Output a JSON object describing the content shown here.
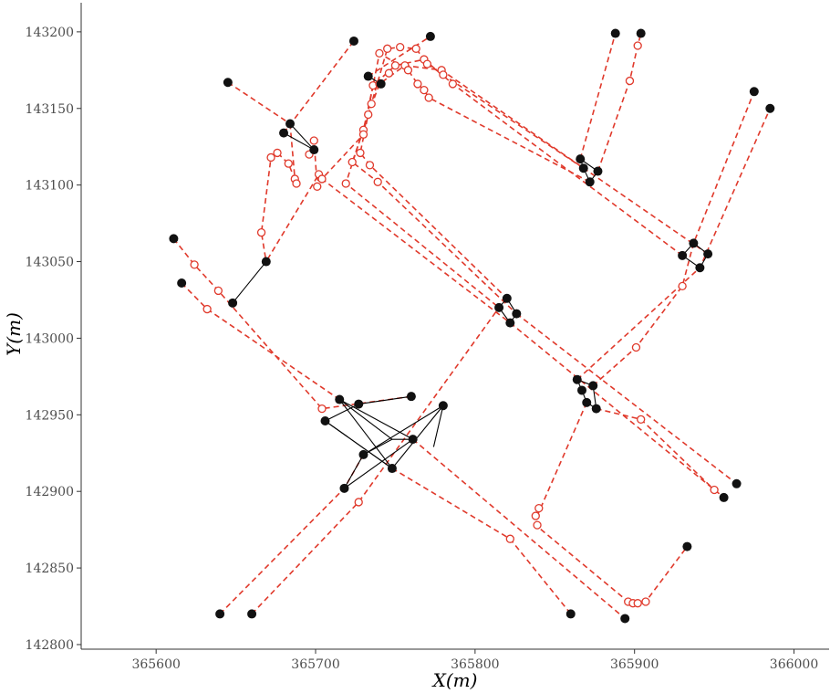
{
  "chart_data": {
    "type": "scatter",
    "xlabel": "X(m)",
    "ylabel": "Y(m)",
    "xlim": [
      365553,
      366022
    ],
    "ylim": [
      142797,
      143219
    ],
    "x_ticks": [
      365600,
      365700,
      365800,
      365900,
      366000
    ],
    "y_ticks": [
      142800,
      142850,
      142900,
      142950,
      143000,
      143050,
      143100,
      143150,
      143200
    ],
    "x_tick_labels": [
      "365600",
      "365700",
      "365800",
      "365900",
      "366000"
    ],
    "y_tick_labels": [
      "142800",
      "142850",
      "142900",
      "142950",
      "143000",
      "143050",
      "143100",
      "143150",
      "143200"
    ],
    "grid": false,
    "legend": "none",
    "colors": {
      "link": "#000000",
      "node": "#111111",
      "route": "#e0392b"
    },
    "series": [
      {
        "values": [
          [
            365640,
            142820
          ],
          [
            365718,
            142902
          ],
          [
            365780,
            142956
          ],
          [
            365815,
            143020
          ],
          [
            365820,
            143026
          ],
          [
            365822,
            143010
          ],
          [
            365826,
            143016
          ],
          [
            365660,
            142820
          ],
          [
            365706,
            142946
          ],
          [
            365761,
            142934
          ],
          [
            365748,
            142915
          ],
          [
            365730,
            142924
          ],
          [
            365860,
            142820
          ],
          [
            365760,
            142962
          ],
          [
            365727,
            142957
          ],
          [
            365715,
            142960
          ],
          [
            365611,
            143065
          ],
          [
            365616,
            143036
          ],
          [
            365648,
            143023
          ],
          [
            365669,
            143050
          ],
          [
            365867,
            142966
          ],
          [
            365870,
            142958
          ],
          [
            365864,
            142973
          ],
          [
            365874,
            142969
          ],
          [
            365956,
            142896
          ],
          [
            365964,
            142905
          ],
          [
            365894,
            142817
          ],
          [
            365933,
            142864
          ],
          [
            365876,
            142954
          ],
          [
            365975,
            143161
          ],
          [
            365985,
            143150
          ],
          [
            365930,
            143054
          ],
          [
            365937,
            143062
          ],
          [
            365941,
            143046
          ],
          [
            365946,
            143055
          ],
          [
            365888,
            143199
          ],
          [
            365904,
            143199
          ],
          [
            365866,
            143117
          ],
          [
            365868,
            143111
          ],
          [
            365872,
            143102
          ],
          [
            365877,
            143109
          ],
          [
            365645,
            143167
          ],
          [
            365684,
            143140
          ],
          [
            365680,
            143134
          ],
          [
            365699,
            143123
          ],
          [
            365724,
            143194
          ],
          [
            365772,
            143197
          ],
          [
            365733,
            143171
          ],
          [
            365741,
            143166
          ]
        ]
      },
      {
        "values": [
          [
            365624,
            143048
          ],
          [
            365639,
            143031
          ],
          [
            365632,
            143019
          ],
          [
            365704,
            142954
          ],
          [
            365727,
            142893
          ],
          [
            365822,
            142869
          ],
          [
            365904,
            142947
          ],
          [
            365950,
            142901
          ],
          [
            365901,
            142994
          ],
          [
            365930,
            143034
          ],
          [
            365897,
            143168
          ],
          [
            365902,
            143191
          ],
          [
            365907,
            142828
          ],
          [
            365896,
            142828
          ],
          [
            365899,
            142827
          ],
          [
            365902,
            142827
          ],
          [
            365838,
            142884
          ],
          [
            365840,
            142889
          ],
          [
            365839,
            142878
          ],
          [
            365666,
            143069
          ],
          [
            365687,
            143104
          ],
          [
            365688,
            143101
          ],
          [
            365701,
            143099
          ],
          [
            365702,
            143107
          ],
          [
            365696,
            143120
          ],
          [
            365699,
            143129
          ],
          [
            365704,
            143104
          ],
          [
            365683,
            143114
          ],
          [
            365672,
            143118
          ],
          [
            365676,
            143121
          ],
          [
            365719,
            143101
          ],
          [
            365723,
            143115
          ],
          [
            365728,
            143121
          ],
          [
            365730,
            143136
          ],
          [
            365734,
            143113
          ],
          [
            365739,
            143102
          ],
          [
            365730,
            143133
          ],
          [
            365733,
            143146
          ],
          [
            365736,
            143165
          ],
          [
            365746,
            143173
          ],
          [
            365750,
            143178
          ],
          [
            365756,
            143178
          ],
          [
            365768,
            143182
          ],
          [
            365779,
            143175
          ],
          [
            365786,
            143166
          ],
          [
            365740,
            143186
          ],
          [
            365745,
            143189
          ],
          [
            365753,
            143190
          ],
          [
            365763,
            143189
          ],
          [
            365770,
            143179
          ],
          [
            365780,
            143172
          ],
          [
            365735,
            143153
          ],
          [
            365740,
            143166
          ],
          [
            365758,
            143175
          ],
          [
            365764,
            143166
          ],
          [
            365768,
            143162
          ],
          [
            365771,
            143157
          ]
        ]
      }
    ]
  }
}
